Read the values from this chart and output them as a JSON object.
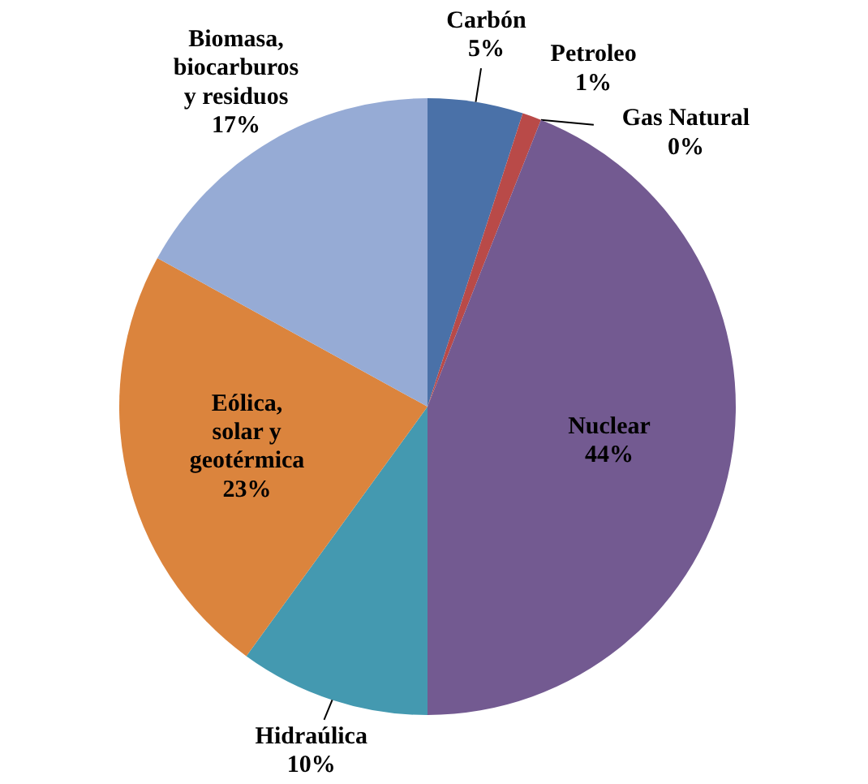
{
  "chart_data": {
    "type": "pie",
    "categories": [
      "Carbón",
      "Petroleo",
      "Gas Natural",
      "Nuclear",
      "Hidraúlica",
      "Eólica, solar y geotérmica",
      "Biomasa, biocarburos y residuos"
    ],
    "values": [
      5,
      1,
      0,
      44,
      10,
      23,
      17
    ],
    "colors": [
      "#4a71a8",
      "#b94a48",
      "#8fb352",
      "#735a91",
      "#4499b0",
      "#db843d",
      "#96abd5"
    ],
    "value_labels": [
      "5%",
      "1%",
      "0%",
      "44%",
      "10%",
      "23%",
      "17%"
    ]
  }
}
